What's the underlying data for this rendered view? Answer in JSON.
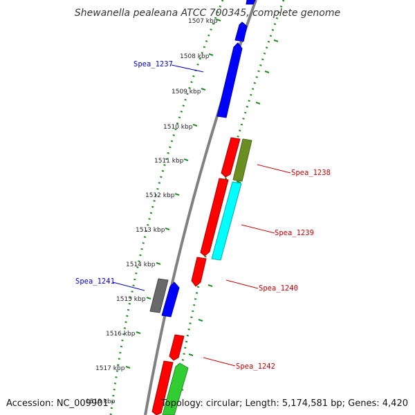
{
  "title": "Shewanella pealeana ATCC 700345, complete genome",
  "footer": {
    "accession": "Accession: NC_009901",
    "topology": "Topology: circular; Length: 5,174,581 bp; Genes: 4,420"
  },
  "ticks": [
    "1507 kbp",
    "1508 kbp",
    "1509 kbp",
    "1510 kbp",
    "1511 kbp",
    "1512 kbp",
    "1513 kbp",
    "1514 kbp",
    "1515 kbp",
    "1516 kbp",
    "1517 kbp",
    "1518 kbp"
  ],
  "features": [
    {
      "label": "Spea_1237",
      "color": "#0000cc"
    },
    {
      "label": "Spea_1238",
      "color": "#cc0000"
    },
    {
      "label": "Spea_1239",
      "color": "#cc0000"
    },
    {
      "label": "Spea_1240",
      "color": "#cc0000"
    },
    {
      "label": "Spea_1241",
      "color": "#0000cc"
    },
    {
      "label": "Spea_1242",
      "color": "#cc0000"
    }
  ],
  "colors": {
    "backbone": "#808080",
    "dotted_ring": "#228b22",
    "gene_forward": "#0000ff",
    "gene_reverse": "#ff0000",
    "gene_olive": "#6b8e23",
    "gene_cyan": "#00ffff",
    "gene_gray": "#696969",
    "gene_green": "#32cd32"
  }
}
